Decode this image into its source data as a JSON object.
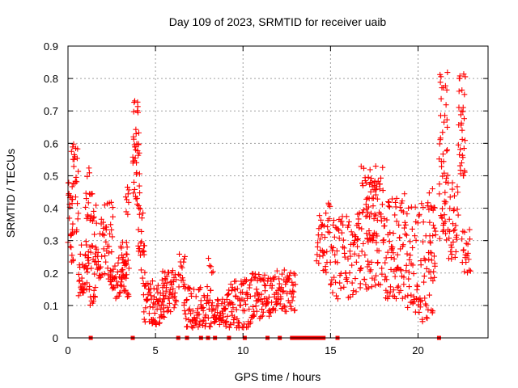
{
  "chart_data": {
    "type": "scatter",
    "title": "Day 109 of 2023, SRMTID for receiver uaib",
    "xlabel": "GPS time / hours",
    "ylabel": "SRMTID / TECUs",
    "xlim": [
      0,
      24
    ],
    "ylim": [
      0,
      0.9
    ],
    "xticks": [
      0,
      5,
      10,
      15,
      20
    ],
    "yticks": [
      0,
      0.1,
      0.2,
      0.3,
      0.4,
      0.5,
      0.6,
      0.7,
      0.8,
      0.9
    ],
    "xtick_labels": [
      "0",
      "5",
      "10",
      "15",
      "20"
    ],
    "ytick_labels": [
      "0",
      "0.1",
      "0.2",
      "0.3",
      "0.4",
      "0.5",
      "0.6",
      "0.7",
      "0.8",
      "0.9"
    ],
    "grid": true,
    "marker": "+",
    "color": "#ff0000",
    "segments": [
      {
        "x0": 0.0,
        "x1": 0.3,
        "lo": 0.22,
        "hi": 0.48,
        "n": 22
      },
      {
        "x0": 0.2,
        "x1": 0.6,
        "lo": 0.32,
        "hi": 0.6,
        "n": 28
      },
      {
        "x0": 0.6,
        "x1": 1.2,
        "lo": 0.13,
        "hi": 0.3,
        "n": 40
      },
      {
        "x0": 1.0,
        "x1": 1.5,
        "lo": 0.36,
        "hi": 0.53,
        "n": 22
      },
      {
        "x0": 1.2,
        "x1": 1.6,
        "lo": 0.1,
        "hi": 0.3,
        "n": 20
      },
      {
        "x0": 1.5,
        "x1": 2.6,
        "lo": 0.18,
        "hi": 0.42,
        "n": 60
      },
      {
        "x0": 2.4,
        "x1": 3.5,
        "lo": 0.12,
        "hi": 0.25,
        "n": 50
      },
      {
        "x0": 3.0,
        "x1": 3.4,
        "lo": 0.18,
        "hi": 0.3,
        "n": 18
      },
      {
        "x0": 3.3,
        "x1": 3.5,
        "lo": 0.38,
        "hi": 0.48,
        "n": 8
      },
      {
        "x0": 3.7,
        "x1": 4.1,
        "lo": 0.4,
        "hi": 0.75,
        "n": 42
      },
      {
        "x0": 4.0,
        "x1": 4.4,
        "lo": 0.18,
        "hi": 0.4,
        "n": 22
      },
      {
        "x0": 4.3,
        "x1": 5.5,
        "lo": 0.04,
        "hi": 0.18,
        "n": 70
      },
      {
        "x0": 5.4,
        "x1": 6.2,
        "lo": 0.08,
        "hi": 0.21,
        "n": 45
      },
      {
        "x0": 6.3,
        "x1": 6.7,
        "lo": 0.15,
        "hi": 0.26,
        "n": 14
      },
      {
        "x0": 6.6,
        "x1": 8.3,
        "lo": 0.03,
        "hi": 0.16,
        "n": 80
      },
      {
        "x0": 8.3,
        "x1": 9.0,
        "lo": 0.04,
        "hi": 0.12,
        "n": 36
      },
      {
        "x0": 8.0,
        "x1": 8.3,
        "lo": 0.2,
        "hi": 0.27,
        "n": 5
      },
      {
        "x0": 9.0,
        "x1": 10.5,
        "lo": 0.03,
        "hi": 0.18,
        "n": 80
      },
      {
        "x0": 10.5,
        "x1": 11.6,
        "lo": 0.06,
        "hi": 0.2,
        "n": 60
      },
      {
        "x0": 11.6,
        "x1": 13.0,
        "lo": 0.08,
        "hi": 0.21,
        "n": 70
      },
      {
        "x0": 14.2,
        "x1": 15.0,
        "lo": 0.2,
        "hi": 0.42,
        "n": 38
      },
      {
        "x0": 15.0,
        "x1": 16.5,
        "lo": 0.12,
        "hi": 0.38,
        "n": 70
      },
      {
        "x0": 16.5,
        "x1": 18.0,
        "lo": 0.15,
        "hi": 0.53,
        "n": 90
      },
      {
        "x0": 17.0,
        "x1": 17.7,
        "lo": 0.3,
        "hi": 0.52,
        "n": 30
      },
      {
        "x0": 18.0,
        "x1": 19.3,
        "lo": 0.12,
        "hi": 0.45,
        "n": 80
      },
      {
        "x0": 19.3,
        "x1": 21.0,
        "lo": 0.05,
        "hi": 0.42,
        "n": 90
      },
      {
        "x0": 20.6,
        "x1": 21.0,
        "lo": 0.2,
        "hi": 0.46,
        "n": 14
      },
      {
        "x0": 21.2,
        "x1": 21.7,
        "lo": 0.3,
        "hi": 0.82,
        "n": 50
      },
      {
        "x0": 21.7,
        "x1": 22.3,
        "lo": 0.24,
        "hi": 0.48,
        "n": 32
      },
      {
        "x0": 22.3,
        "x1": 22.7,
        "lo": 0.5,
        "hi": 0.82,
        "n": 34
      },
      {
        "x0": 22.5,
        "x1": 23.0,
        "lo": 0.2,
        "hi": 0.34,
        "n": 20
      }
    ],
    "zero_points": [
      1.3,
      3.7,
      6.3,
      6.8,
      7.6,
      8.0,
      8.4,
      9.2,
      10.1,
      11.4,
      12.1,
      12.8,
      13.0,
      13.2,
      13.4,
      13.6,
      13.8,
      14.0,
      14.2,
      14.4,
      14.6,
      15.4,
      21.2
    ]
  }
}
